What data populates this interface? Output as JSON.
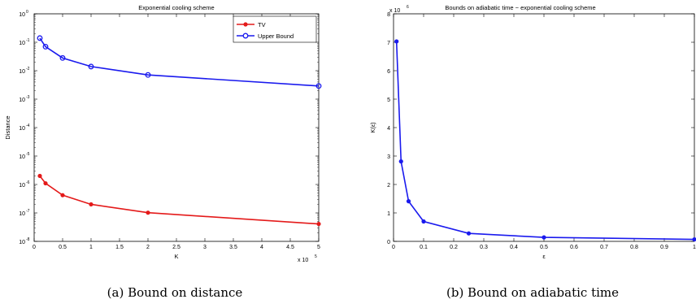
{
  "captions": {
    "a": "(a) Bound on distance",
    "b": "(b) Bound on adiabatic time"
  },
  "chart_data": [
    {
      "type": "line",
      "title": "Exponential cooling scheme",
      "xlabel": "K",
      "ylabel": "Distance",
      "x_multiplier": {
        "base": "x 10",
        "exp": "5"
      },
      "xlim": [
        0,
        5
      ],
      "ylim_log10": [
        -8,
        0
      ],
      "ylog": true,
      "xticks": [
        "0",
        "0.5",
        "1",
        "1.5",
        "2",
        "2.5",
        "3",
        "3.5",
        "4",
        "4.5",
        "5"
      ],
      "yticks_exp": [
        "-8",
        "-7",
        "-6",
        "-5",
        "-4",
        "-3",
        "-2",
        "-1",
        "0"
      ],
      "legend": {
        "position": "top-right"
      },
      "series": [
        {
          "name": "TV",
          "color": "#e41a1a",
          "marker": "filled-circle",
          "x": [
            0.1,
            0.2,
            0.5,
            1,
            2,
            5
          ],
          "y": [
            2e-06,
            1.1e-06,
            4.2e-07,
            2e-07,
            1.02e-07,
            4.1e-08
          ]
        },
        {
          "name": "Upper Bound",
          "color": "#1a1aee",
          "marker": "open-circle",
          "x": [
            0.1,
            0.2,
            0.5,
            1,
            2,
            5
          ],
          "y": [
            0.14,
            0.07,
            0.028,
            0.014,
            0.0071,
            0.0029
          ]
        }
      ]
    },
    {
      "type": "line",
      "title": "Bounds on adiabatic time − exponential cooling scheme",
      "xlabel": "ε",
      "ylabel": "K(ε)",
      "y_multiplier": {
        "base": "x 10",
        "exp": "6"
      },
      "xlim": [
        0,
        1
      ],
      "ylim": [
        0,
        8
      ],
      "xticks": [
        "0",
        "0.1",
        "0.2",
        "0.3",
        "0.4",
        "0.5",
        "0.6",
        "0.7",
        "0.8",
        "0.9",
        "1"
      ],
      "yticks": [
        "0",
        "1",
        "2",
        "3",
        "4",
        "5",
        "6",
        "7",
        "8"
      ],
      "series": [
        {
          "color": "#1a1aee",
          "marker": "filled-circle",
          "x": [
            0.01,
            0.025,
            0.05,
            0.1,
            0.25,
            0.5,
            1.0
          ],
          "y": [
            7.03,
            2.81,
            1.41,
            0.7,
            0.28,
            0.14,
            0.07
          ]
        }
      ]
    }
  ]
}
